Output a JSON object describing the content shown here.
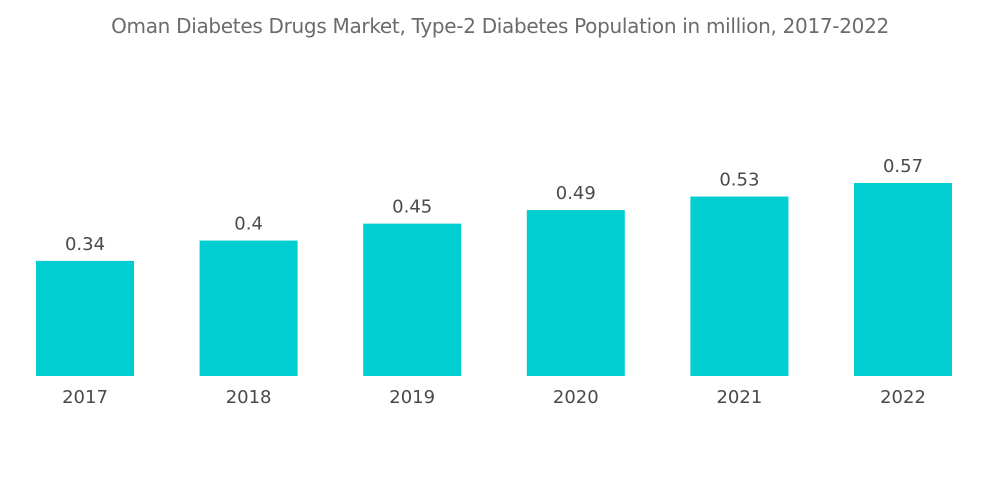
{
  "chart_data": {
    "type": "bar",
    "title": "Oman Diabetes Drugs Market, Type-2 Diabetes Population in million, 2017-2022",
    "xlabel": "",
    "ylabel": "",
    "categories": [
      "2017",
      "2018",
      "2019",
      "2020",
      "2021",
      "2022"
    ],
    "values": [
      0.34,
      0.4,
      0.45,
      0.49,
      0.53,
      0.57
    ],
    "value_labels": [
      "0.34",
      "0.4",
      "0.45",
      "0.49",
      "0.53",
      "0.57"
    ],
    "ylim": [
      0,
      0.57
    ],
    "grid": false,
    "legend": "none",
    "color": "#00ced1"
  }
}
